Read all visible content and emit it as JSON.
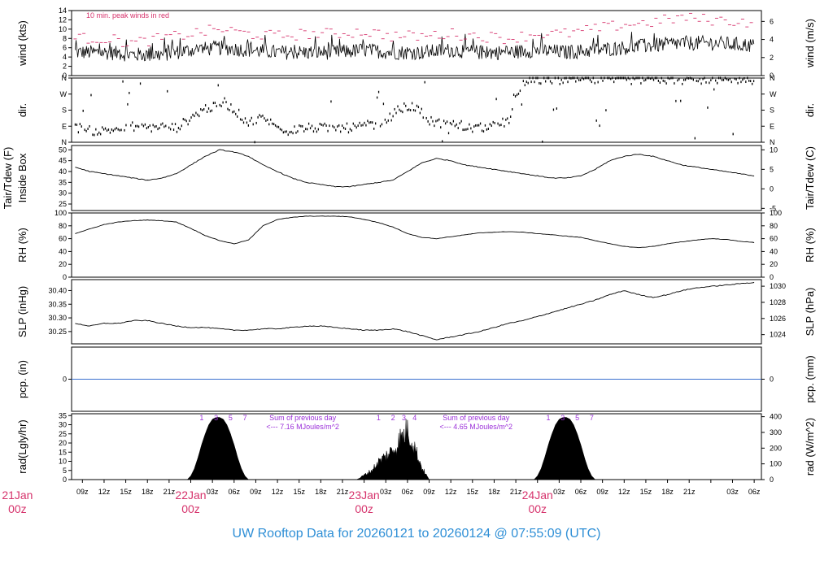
{
  "footer": {
    "title": "UW Rooftop Data for 20260121  to  20260124 @ 07:55:09  (UTC)"
  },
  "chart_data": [
    {
      "type": "line",
      "id": "wind",
      "ylabel_left": "wind (kts)",
      "ylabel_right": "wind (m/s)",
      "ylim": [
        0,
        14
      ],
      "yticks_left": [
        0,
        2,
        4,
        6,
        8,
        10,
        12,
        14
      ],
      "yticks_right": [
        0,
        2,
        4,
        6
      ],
      "annotation": "10 min. peak winds in red",
      "series": [
        {
          "x": [
            0,
            4,
            8,
            12,
            16,
            20,
            24,
            28,
            32,
            36,
            40,
            44,
            48,
            52,
            56,
            60,
            64,
            68,
            72,
            76,
            80,
            84,
            88,
            94
          ],
          "values": [
            5,
            5,
            4.5,
            4.5,
            5.5,
            6,
            5.5,
            5,
            5,
            5,
            5.5,
            5,
            5,
            5.5,
            5,
            5,
            5.5,
            5,
            5.5,
            6,
            6.5,
            7,
            7,
            6.5
          ]
        },
        {
          "x": [
            0,
            4,
            8,
            12,
            16,
            20,
            24,
            28,
            32,
            36,
            40,
            44,
            48,
            52,
            56,
            60,
            64,
            68,
            72,
            76,
            80,
            84,
            88,
            94
          ],
          "values": [
            8,
            8,
            7,
            8,
            9,
            10,
            9,
            8.5,
            9,
            9,
            9.5,
            8.5,
            8.5,
            9,
            8.5,
            8,
            9,
            9,
            10,
            11,
            11.5,
            12.5,
            12,
            11.5
          ]
        }
      ]
    },
    {
      "type": "scatter",
      "id": "direction",
      "ylabel_left": "dir.",
      "ylabel_right": "dir.",
      "yticks": [
        "N",
        "E",
        "S",
        "W",
        "N"
      ],
      "series": [
        {
          "x": [
            1,
            3,
            5,
            8,
            10,
            12,
            14,
            18,
            20,
            20.5,
            22,
            24,
            26,
            28,
            30,
            32,
            34,
            36,
            38,
            40,
            43,
            45,
            47,
            49,
            50,
            52,
            54,
            56,
            58,
            60,
            62,
            64,
            66,
            68,
            70,
            72,
            74,
            76,
            78,
            80,
            82,
            84,
            86,
            88,
            90,
            92,
            94
          ],
          "values": [
            80,
            60,
            70,
            90,
            80,
            90,
            80,
            190,
            200,
            230,
            180,
            110,
            140,
            80,
            70,
            80,
            80,
            80,
            80,
            90,
            120,
            190,
            200,
            120,
            110,
            100,
            80,
            80,
            90,
            120,
            340,
            350,
            350,
            345,
            355,
            350,
            350,
            350,
            350,
            355,
            350,
            350,
            350,
            345,
            350,
            350,
            350
          ]
        }
      ]
    },
    {
      "type": "line",
      "id": "temperature",
      "ylabel_left": "Tair/Tdew (F)",
      "ylabel_left2": "Inside Box",
      "ylabel_right": "Tair/Tdew (C)",
      "ylim": [
        22,
        52
      ],
      "yticks_left": [
        25,
        30,
        35,
        40,
        45,
        50
      ],
      "yticks_right": [
        -5,
        0,
        5,
        10
      ],
      "series": [
        {
          "x": [
            0,
            2,
            4,
            6,
            8,
            10,
            12,
            14,
            16,
            18,
            20,
            22,
            24,
            26,
            28,
            30,
            32,
            34,
            36,
            38,
            40,
            42,
            44,
            46,
            48,
            50,
            52,
            54,
            56,
            58,
            60,
            62,
            64,
            66,
            68,
            70,
            72,
            74,
            76,
            78,
            80,
            82,
            84,
            86,
            88,
            90,
            92,
            94
          ],
          "values": [
            42,
            40,
            39,
            38,
            37,
            36,
            37,
            39,
            43,
            47,
            50,
            49,
            47,
            43,
            40,
            37,
            35,
            34,
            33,
            33,
            34,
            35,
            36,
            40,
            44,
            46,
            45,
            43,
            42,
            41,
            40,
            39,
            38,
            37,
            37,
            38,
            41,
            45,
            47,
            48,
            47,
            45,
            43,
            42,
            41,
            40,
            39,
            38
          ]
        }
      ]
    },
    {
      "type": "line",
      "id": "humidity",
      "ylabel_left": "RH (%)",
      "ylabel_right": "RH (%)",
      "ylim": [
        0,
        100
      ],
      "yticks": [
        0,
        20,
        40,
        60,
        80,
        100
      ],
      "series": [
        {
          "x": [
            0,
            2,
            4,
            6,
            8,
            10,
            12,
            14,
            16,
            18,
            20,
            22,
            24,
            26,
            28,
            30,
            32,
            34,
            36,
            38,
            40,
            42,
            44,
            46,
            48,
            50,
            52,
            54,
            56,
            58,
            60,
            62,
            64,
            66,
            68,
            70,
            72,
            74,
            76,
            78,
            80,
            82,
            84,
            86,
            88,
            90,
            92,
            94
          ],
          "values": [
            68,
            75,
            82,
            86,
            88,
            89,
            88,
            86,
            76,
            65,
            57,
            52,
            58,
            80,
            90,
            93,
            95,
            95,
            95,
            94,
            90,
            85,
            78,
            68,
            62,
            60,
            63,
            66,
            69,
            70,
            71,
            70,
            68,
            66,
            64,
            62,
            57,
            52,
            48,
            46,
            48,
            52,
            55,
            58,
            60,
            59,
            56,
            54
          ]
        }
      ]
    },
    {
      "type": "line",
      "id": "pressure",
      "ylabel_left": "SLP (inHg)",
      "ylabel_right": "SLP (hPa)",
      "ylim": [
        30.205,
        30.44
      ],
      "yticks_left": [
        30.25,
        30.3,
        30.35,
        30.4
      ],
      "yticks_right": [
        1024,
        1026,
        1028,
        1030
      ],
      "series": [
        {
          "x": [
            0,
            2,
            4,
            6,
            8,
            10,
            12,
            14,
            16,
            18,
            20,
            22,
            24,
            26,
            28,
            30,
            32,
            34,
            36,
            38,
            40,
            42,
            44,
            46,
            48,
            50,
            52,
            54,
            56,
            58,
            60,
            62,
            64,
            66,
            68,
            70,
            72,
            74,
            76,
            78,
            80,
            82,
            84,
            86,
            88,
            90,
            92,
            94
          ],
          "values": [
            30.28,
            30.27,
            30.28,
            30.28,
            30.29,
            30.29,
            30.28,
            30.27,
            30.265,
            30.265,
            30.26,
            30.255,
            30.255,
            30.26,
            30.26,
            30.265,
            30.27,
            30.27,
            30.265,
            30.26,
            30.255,
            30.255,
            30.26,
            30.25,
            30.235,
            30.22,
            30.23,
            30.24,
            30.25,
            30.265,
            30.28,
            30.29,
            30.305,
            30.32,
            30.335,
            30.35,
            30.365,
            30.385,
            30.4,
            30.385,
            30.375,
            30.385,
            30.4,
            30.41,
            30.415,
            30.42,
            30.425,
            30.43
          ]
        }
      ]
    },
    {
      "type": "line",
      "id": "precipitation",
      "ylabel_left": "pcp. (in)",
      "ylabel_right": "pcp. (mm)",
      "ylim": [
        -1,
        1
      ],
      "yticks": [
        0
      ],
      "series": [
        {
          "x": [
            0,
            94
          ],
          "values": [
            0,
            0
          ]
        }
      ]
    },
    {
      "type": "area",
      "id": "radiation",
      "ylabel_left": "rad(Lgly/hr)",
      "ylabel_right": "rad (W/m^2)",
      "ylim": [
        0,
        36
      ],
      "yticks_left": [
        0,
        5,
        10,
        15,
        20,
        25,
        30,
        35
      ],
      "yticks_right": [
        0,
        100,
        200,
        300,
        400
      ],
      "hour_marks": [
        "1",
        "3",
        "5",
        "7",
        "1",
        "2",
        "3",
        "4",
        "1",
        "3",
        "5",
        "7"
      ],
      "daily_notes": [
        {
          "line1": "Sum of previous day",
          "line2": "<--- 7.16 MJoules/m^2"
        },
        {
          "line1": "Sum of previous day",
          "line2": "<--- 4.65 MJoules/m^2"
        }
      ],
      "series": [
        {
          "x": [
            15.5,
            16,
            16.5,
            17,
            17.5,
            18,
            18.5,
            19,
            19.5,
            20,
            20.5,
            21,
            21.5,
            22,
            22.5,
            23,
            23.5,
            24
          ],
          "values": [
            0,
            2,
            6,
            12,
            19,
            25,
            30,
            33,
            34,
            34,
            33,
            30,
            25,
            19,
            12,
            6,
            2,
            0
          ]
        },
        {
          "x": [
            39,
            40,
            41,
            42,
            43,
            44,
            44.5,
            45,
            45.5,
            46,
            46.5,
            47,
            48,
            49
          ],
          "values": [
            0,
            3,
            6,
            12,
            16,
            20,
            23,
            28,
            30,
            34,
            28,
            22,
            8,
            0
          ]
        },
        {
          "x": [
            63.5,
            64,
            64.5,
            65,
            65.5,
            66,
            66.5,
            67,
            67.5,
            68,
            68.5,
            69,
            69.5,
            70,
            70.5,
            71,
            71.5,
            72
          ],
          "values": [
            0,
            2,
            6,
            12,
            19,
            25,
            30,
            33,
            34,
            34,
            33,
            30,
            25,
            19,
            12,
            6,
            2,
            0
          ]
        }
      ]
    }
  ],
  "time_axis": {
    "tick_hours": [
      1,
      4,
      7,
      10,
      13,
      16,
      19,
      22,
      25,
      28,
      31,
      34,
      37,
      40,
      43,
      46,
      49,
      52,
      55,
      58,
      61,
      64,
      67,
      70,
      73,
      76,
      79,
      82,
      85,
      88,
      91
    ],
    "tick_labels": [
      "09z",
      "12z",
      "15z",
      "18z",
      "21z",
      "",
      "03z",
      "06z",
      "09z",
      "12z",
      "15z",
      "18z",
      "21z",
      "",
      "03z",
      "06z",
      "09z",
      "12z",
      "15z",
      "18z",
      "21z",
      "",
      "03z",
      "06z",
      "09z",
      "12z",
      "15z",
      "18z",
      "21z",
      "",
      "03z"
    ],
    "final_tick": {
      "hour": 94,
      "label": "06z"
    },
    "day_labels": [
      {
        "hour": -8,
        "date": "21Jan",
        "time": "00z"
      },
      {
        "hour": 16,
        "date": "22Jan",
        "time": "00z"
      },
      {
        "hour": 40,
        "date": "23Jan",
        "time": "00z"
      },
      {
        "hour": 64,
        "date": "24Jan",
        "time": "00z"
      }
    ],
    "range_hours": [
      -0.5,
      95
    ]
  }
}
